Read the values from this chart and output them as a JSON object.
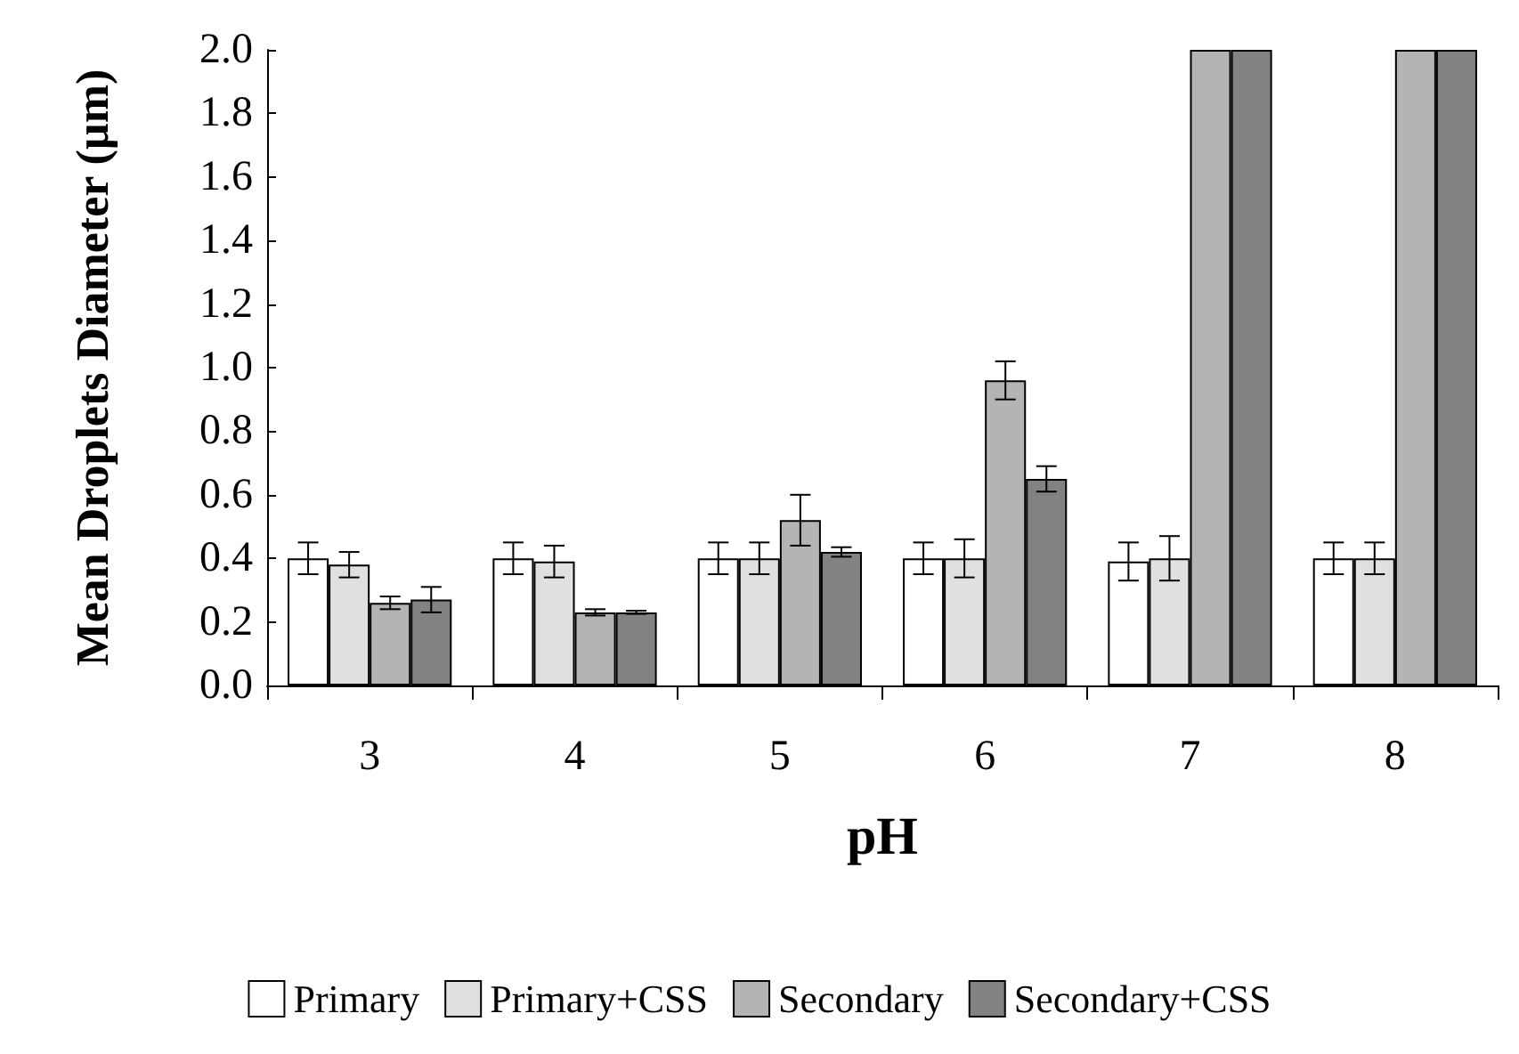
{
  "chart_data": {
    "type": "bar",
    "xlabel": "pH",
    "ylabel": "Mean Droplets Diameter (µm)",
    "categories": [
      "3",
      "4",
      "5",
      "6",
      "7",
      "8"
    ],
    "series": [
      {
        "name": "Primary",
        "color": "#ffffff",
        "values": [
          0.4,
          0.4,
          0.4,
          0.4,
          0.39,
          0.4
        ],
        "errors": [
          0.05,
          0.05,
          0.05,
          0.05,
          0.06,
          0.05
        ]
      },
      {
        "name": "Primary+CSS",
        "color": "#e0e0e0",
        "values": [
          0.38,
          0.39,
          0.4,
          0.4,
          0.4,
          0.4
        ],
        "errors": [
          0.04,
          0.05,
          0.05,
          0.06,
          0.07,
          0.05
        ]
      },
      {
        "name": "Secondary",
        "color": "#b4b4b4",
        "values": [
          0.26,
          0.23,
          0.52,
          0.96,
          2.0,
          2.0
        ],
        "errors": [
          0.02,
          0.01,
          0.08,
          0.06,
          null,
          null
        ]
      },
      {
        "name": "Secondary+CSS",
        "color": "#828282",
        "values": [
          0.27,
          0.23,
          0.42,
          0.65,
          2.0,
          2.0
        ],
        "errors": [
          0.04,
          0.005,
          0.015,
          0.04,
          null,
          null
        ]
      }
    ],
    "ylim": [
      0,
      2
    ],
    "yticks": [
      {
        "value": 0,
        "label": "0.0"
      },
      {
        "value": 0.2,
        "label": "0.2"
      },
      {
        "value": 0.4,
        "label": "0.4"
      },
      {
        "value": 0.6,
        "label": "0.6"
      },
      {
        "value": 0.8,
        "label": "0.8"
      },
      {
        "value": 1,
        "label": "1.0"
      },
      {
        "value": 1.2,
        "label": "1.2"
      },
      {
        "value": 1.4,
        "label": "1.4"
      },
      {
        "value": 1.6,
        "label": "1.6"
      },
      {
        "value": 1.8,
        "label": "1.8"
      },
      {
        "value": 2,
        "label": "2.0"
      }
    ],
    "grid": false,
    "legend": "bottom"
  }
}
